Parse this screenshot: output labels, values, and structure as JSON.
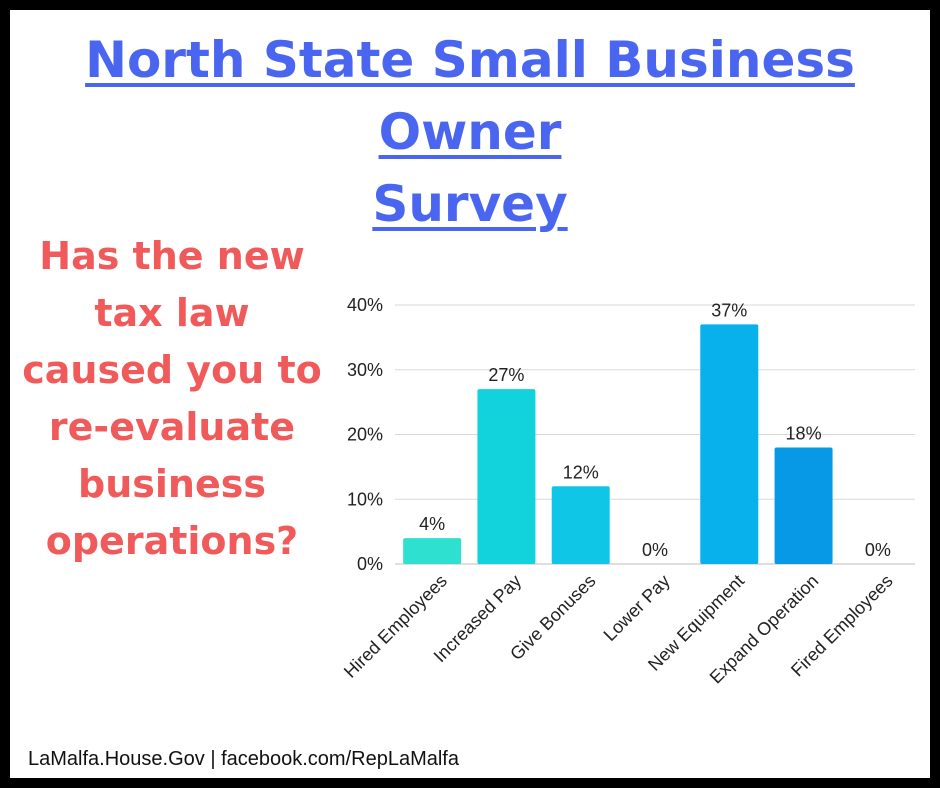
{
  "header": {
    "title_line1": "North State Small Business Owner",
    "title_line2": "Survey"
  },
  "question": {
    "lines": [
      "Has the new",
      "tax law",
      "caused you to",
      "re-evaluate",
      "business",
      "operations?"
    ]
  },
  "footer": {
    "text": "LaMalfa.House.Gov | facebook.com/RepLaMalfa"
  },
  "colors": {
    "title": "#4a66f0",
    "question": "#f05a5a",
    "border": "#000000"
  },
  "chart_data": {
    "type": "bar",
    "categories": [
      "Hired Employees",
      "Increased Pay",
      "Give Bonuses",
      "Lower Pay",
      "New Equipment",
      "Expand Operation",
      "Fired Employees"
    ],
    "values": [
      4,
      27,
      12,
      0,
      37,
      18,
      0
    ],
    "data_labels": [
      "4%",
      "27%",
      "12%",
      "0%",
      "37%",
      "18%",
      "0%"
    ],
    "bar_colors": [
      "#2de0d0",
      "#12d2dc",
      "#10c6e6",
      "#0bb7ea",
      "#08b0ec",
      "#0799e6",
      "#0688e0"
    ],
    "ylim": [
      0,
      40
    ],
    "yticks": [
      0,
      10,
      20,
      30,
      40
    ],
    "ytick_labels": [
      "0%",
      "10%",
      "20%",
      "30%",
      "40%"
    ],
    "grid": true,
    "legend": "none",
    "xlabel": "",
    "ylabel": ""
  }
}
